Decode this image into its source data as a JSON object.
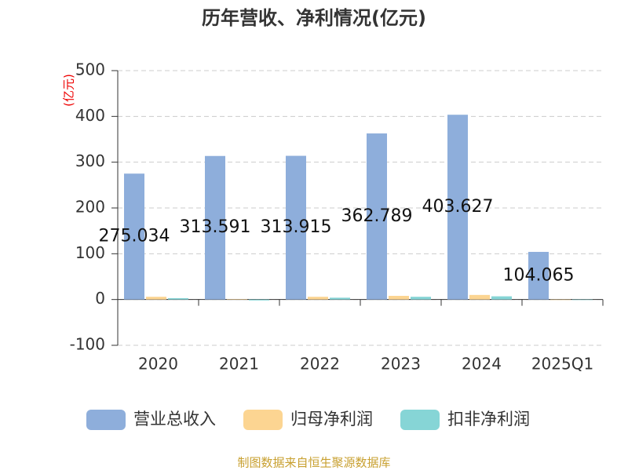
{
  "chart_data": {
    "type": "bar",
    "title": "历年营收、净利情况(亿元)",
    "y_label": "(亿元)",
    "categories": [
      "2020",
      "2021",
      "2022",
      "2023",
      "2024",
      "2025Q1"
    ],
    "series": [
      {
        "name": "营业总收入",
        "color": "#8eaedb",
        "show_labels": true,
        "values": [
          275.034,
          313.591,
          313.915,
          362.789,
          403.627,
          104.065
        ]
      },
      {
        "name": "归母净利润",
        "color": "#fcd592",
        "show_labels": false,
        "values": [
          6,
          1,
          6,
          8,
          10,
          -1
        ]
      },
      {
        "name": "扣非净利润",
        "color": "#86d5d6",
        "show_labels": false,
        "values": [
          3,
          -2,
          4,
          6,
          7,
          -1
        ]
      }
    ],
    "ylim": [
      -100,
      500
    ],
    "yticks": [
      -100,
      0,
      100,
      200,
      300,
      400,
      500
    ],
    "grid": true,
    "legend": "bottom",
    "source": "制图数据来自恒生聚源数据库"
  }
}
